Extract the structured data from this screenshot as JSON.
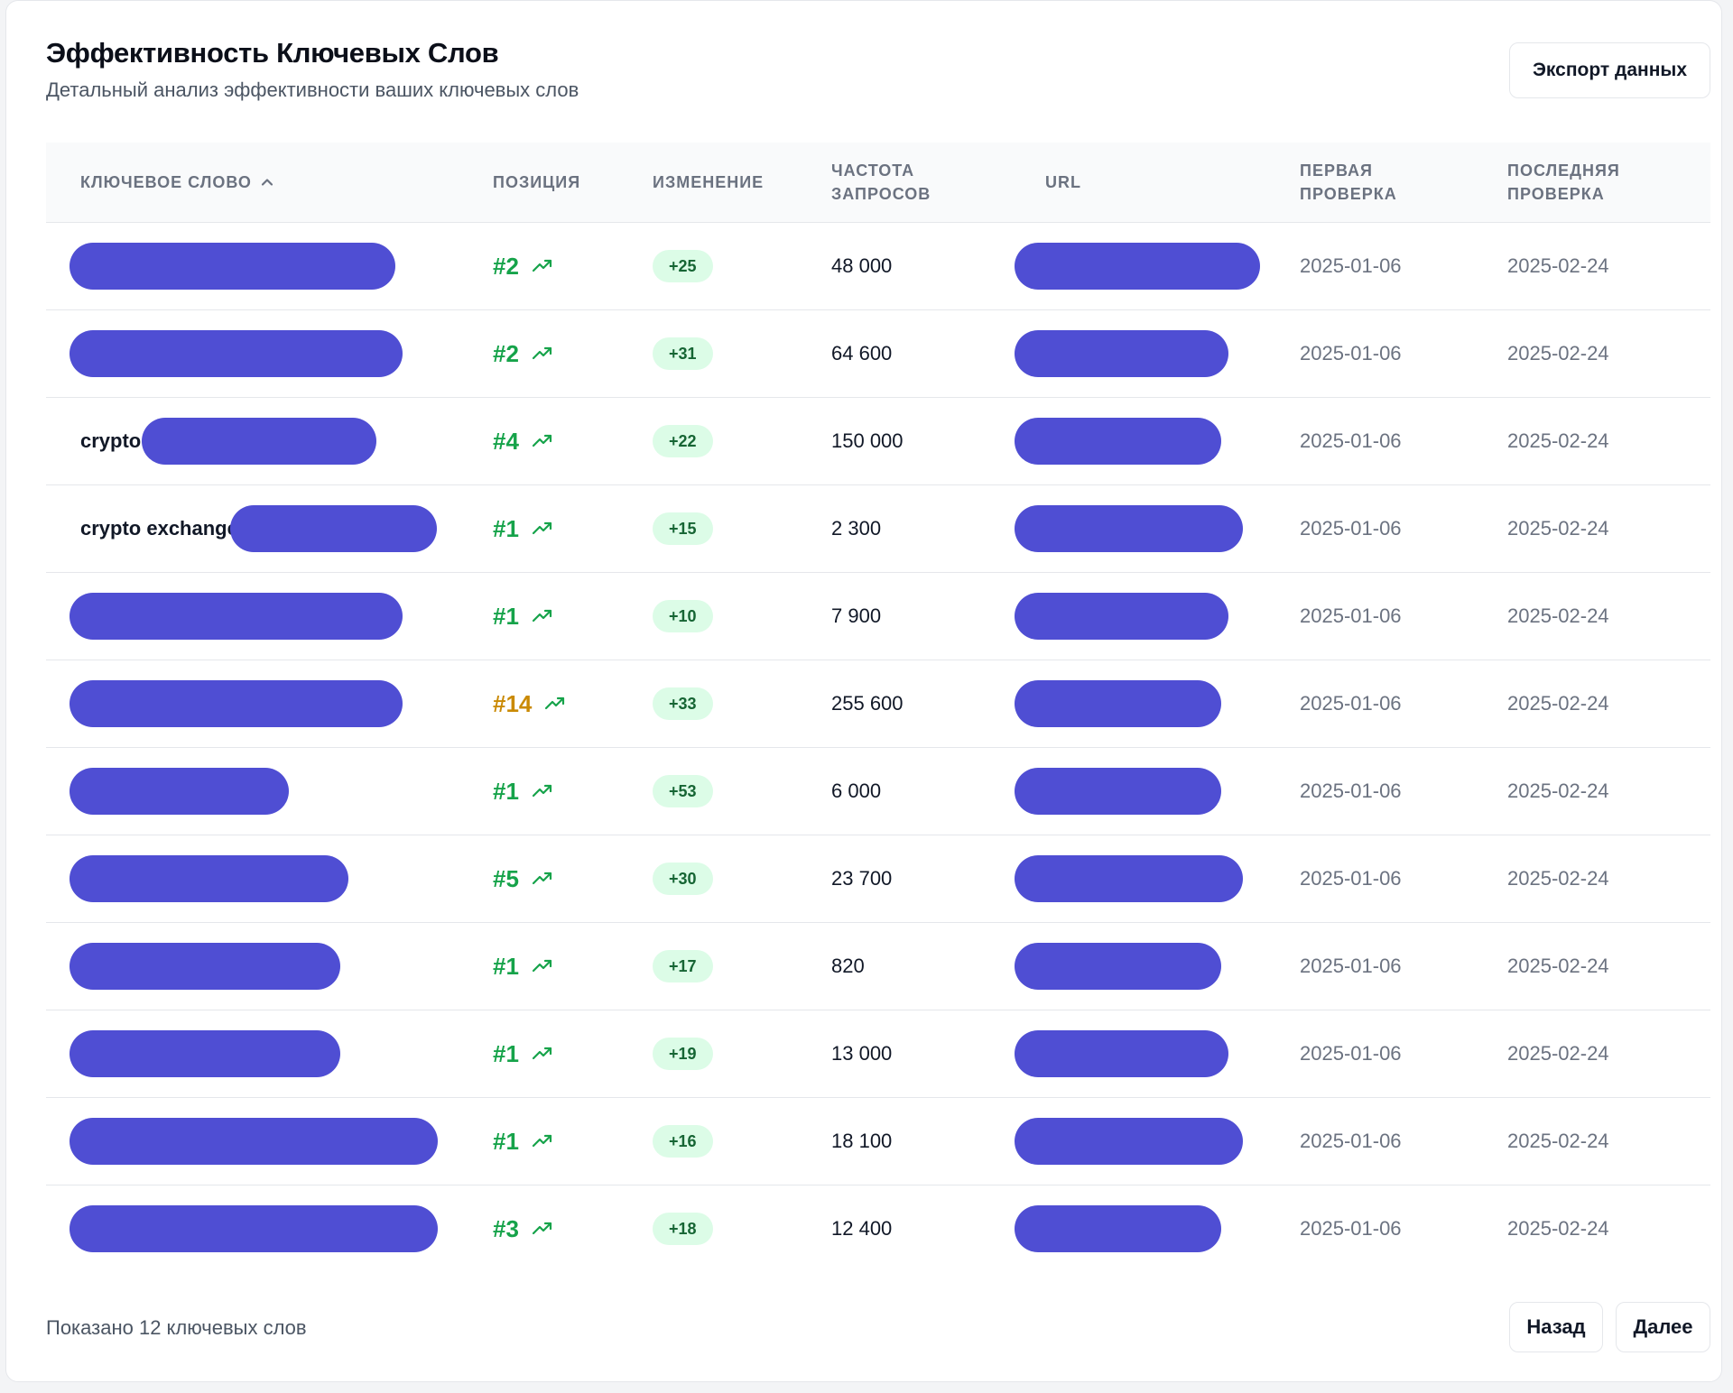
{
  "header": {
    "title": "Эффективность Ключевых Слов",
    "subtitle": "Детальный анализ эффективности ваших ключевых слов",
    "export_label": "Экспорт данных"
  },
  "columns": {
    "keyword": "КЛЮЧЕВОЕ СЛОВО",
    "position": "ПОЗИЦИЯ",
    "change": "ИЗМЕНЕНИЕ",
    "frequency": "ЧАСТОТА ЗАПРОСОВ",
    "url": "URL",
    "first_check": "ПЕРВАЯ ПРОВЕРКА",
    "last_check": "ПОСЛЕДНЯЯ ПРОВЕРКА"
  },
  "colors": {
    "accent_redaction": "#4f4ed3",
    "position_good": "#16a34a",
    "position_mid": "#ca8a04",
    "badge_bg": "#dcfce7",
    "badge_text": "#166534"
  },
  "icons": {
    "sort": "chevron-up-icon",
    "trend": "trending-up-icon"
  },
  "rows": [
    {
      "keyword": "",
      "position": "#2",
      "change": "+25",
      "frequency": "48 000",
      "first_check": "2025-01-06",
      "last_check": "2025-02-24",
      "pos_color": "#16a34a"
    },
    {
      "keyword": "",
      "position": "#2",
      "change": "+31",
      "frequency": "64 600",
      "first_check": "2025-01-06",
      "last_check": "2025-02-24",
      "pos_color": "#16a34a"
    },
    {
      "keyword": "crypto",
      "position": "#4",
      "change": "+22",
      "frequency": "150 000",
      "first_check": "2025-01-06",
      "last_check": "2025-02-24",
      "pos_color": "#16a34a"
    },
    {
      "keyword": "crypto exchange",
      "position": "#1",
      "change": "+15",
      "frequency": "2 300",
      "first_check": "2025-01-06",
      "last_check": "2025-02-24",
      "pos_color": "#16a34a"
    },
    {
      "keyword": "",
      "position": "#1",
      "change": "+10",
      "frequency": "7 900",
      "first_check": "2025-01-06",
      "last_check": "2025-02-24",
      "pos_color": "#16a34a"
    },
    {
      "keyword": "",
      "position": "#14",
      "change": "+33",
      "frequency": "255 600",
      "first_check": "2025-01-06",
      "last_check": "2025-02-24",
      "pos_color": "#ca8a04"
    },
    {
      "keyword": "",
      "position": "#1",
      "change": "+53",
      "frequency": "6 000",
      "first_check": "2025-01-06",
      "last_check": "2025-02-24",
      "pos_color": "#16a34a"
    },
    {
      "keyword": "",
      "position": "#5",
      "change": "+30",
      "frequency": "23 700",
      "first_check": "2025-01-06",
      "last_check": "2025-02-24",
      "pos_color": "#16a34a"
    },
    {
      "keyword": "",
      "position": "#1",
      "change": "+17",
      "frequency": "820",
      "first_check": "2025-01-06",
      "last_check": "2025-02-24",
      "pos_color": "#16a34a"
    },
    {
      "keyword": "",
      "position": "#1",
      "change": "+19",
      "frequency": "13 000",
      "first_check": "2025-01-06",
      "last_check": "2025-02-24",
      "pos_color": "#16a34a"
    },
    {
      "keyword": "",
      "position": "#1",
      "change": "+16",
      "frequency": "18 100",
      "first_check": "2025-01-06",
      "last_check": "2025-02-24",
      "pos_color": "#16a34a"
    },
    {
      "keyword": "",
      "position": "#3",
      "change": "+18",
      "frequency": "12 400",
      "first_check": "2025-01-06",
      "last_check": "2025-02-24",
      "pos_color": "#16a34a"
    }
  ],
  "footer": {
    "shown_text": "Показано 12 ключевых слов",
    "prev_label": "Назад",
    "next_label": "Далее"
  }
}
